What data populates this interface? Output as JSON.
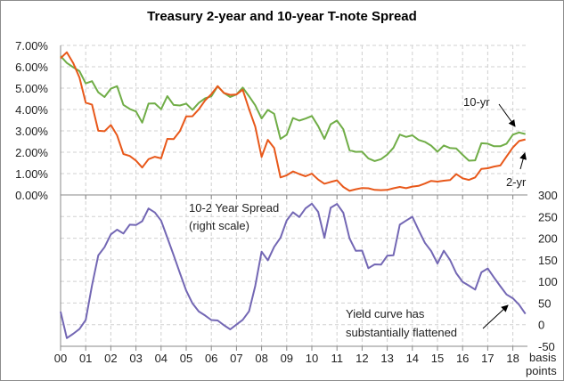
{
  "chart_data": {
    "type": "line",
    "title": "Treasury 2-year and 10-year T-note Spread",
    "x_start": 2000,
    "x_step": 0.25,
    "x_tick_labels": [
      "00",
      "01",
      "02",
      "03",
      "04",
      "05",
      "06",
      "07",
      "08",
      "09",
      "10",
      "11",
      "12",
      "13",
      "14",
      "15",
      "16",
      "17",
      "18"
    ],
    "upper_panel": {
      "ylim": [
        0,
        7
      ],
      "y_tick_labels": [
        "0.00%",
        "1.00%",
        "2.00%",
        "3.00%",
        "4.00%",
        "5.00%",
        "6.00%",
        "7.00%"
      ],
      "series": [
        {
          "name": "10-yr",
          "color": "#70ad47",
          "values": [
            6.5,
            6.2,
            6.0,
            5.8,
            5.2,
            5.3,
            4.8,
            4.6,
            5.0,
            5.1,
            4.2,
            4.0,
            3.9,
            3.4,
            4.3,
            4.3,
            4.0,
            4.6,
            4.2,
            4.2,
            4.3,
            4.0,
            4.3,
            4.5,
            4.6,
            5.1,
            4.8,
            4.6,
            4.7,
            5.0,
            4.6,
            4.2,
            3.6,
            4.0,
            3.8,
            2.6,
            2.8,
            3.6,
            3.5,
            3.6,
            3.7,
            3.2,
            2.6,
            3.3,
            3.5,
            3.1,
            2.1,
            2.0,
            2.0,
            1.7,
            1.6,
            1.7,
            1.9,
            2.2,
            2.8,
            2.7,
            2.8,
            2.6,
            2.5,
            2.3,
            2.0,
            2.3,
            2.2,
            2.2,
            1.9,
            1.6,
            1.6,
            2.4,
            2.4,
            2.3,
            2.3,
            2.4,
            2.8,
            2.9,
            2.85
          ]
        },
        {
          "name": "2-yr",
          "color": "#e8581a",
          "values": [
            6.4,
            6.7,
            6.2,
            5.5,
            4.3,
            4.2,
            3.0,
            3.0,
            3.3,
            2.8,
            1.9,
            1.8,
            1.6,
            1.3,
            1.7,
            1.8,
            1.7,
            2.6,
            2.6,
            3.0,
            3.7,
            3.7,
            4.0,
            4.4,
            4.7,
            5.1,
            4.8,
            4.7,
            4.7,
            4.9,
            4.0,
            3.2,
            1.8,
            2.6,
            2.2,
            0.8,
            0.9,
            1.1,
            1.0,
            0.9,
            1.0,
            0.7,
            0.5,
            0.6,
            0.7,
            0.4,
            0.2,
            0.25,
            0.3,
            0.3,
            0.25,
            0.25,
            0.25,
            0.3,
            0.35,
            0.3,
            0.4,
            0.45,
            0.55,
            0.65,
            0.6,
            0.65,
            0.7,
            1.0,
            0.8,
            0.7,
            0.8,
            1.2,
            1.25,
            1.35,
            1.4,
            1.8,
            2.2,
            2.5,
            2.6
          ]
        }
      ]
    },
    "lower_panel": {
      "ylim": [
        -50,
        300
      ],
      "y_tick_labels": [
        "-50",
        "0",
        "50",
        "100",
        "150",
        "200",
        "250",
        "300"
      ],
      "y_unit_label": [
        "basis",
        "points"
      ],
      "series": [
        {
          "name": "10-2 Year Spread",
          "color": "#7367b4",
          "values": [
            30,
            -30,
            -20,
            -10,
            10,
            90,
            160,
            180,
            210,
            220,
            210,
            230,
            230,
            240,
            270,
            260,
            240,
            200,
            160,
            120,
            80,
            50,
            30,
            20,
            10,
            10,
            0,
            -10,
            0,
            10,
            30,
            90,
            170,
            150,
            180,
            200,
            240,
            260,
            250,
            270,
            280,
            260,
            200,
            270,
            280,
            260,
            200,
            170,
            170,
            130,
            140,
            140,
            160,
            160,
            230,
            240,
            250,
            220,
            190,
            170,
            140,
            170,
            150,
            120,
            100,
            90,
            80,
            120,
            130,
            110,
            90,
            70,
            60,
            45,
            25
          ]
        }
      ]
    },
    "annotations": {
      "ten_yr": "10-yr",
      "two_yr": "2-yr",
      "spread_line1": "10-2 Year  Spread",
      "spread_line2": "(right scale)",
      "flatten_line1": "Yield curve has",
      "flatten_line2": "substantially flattened"
    }
  }
}
